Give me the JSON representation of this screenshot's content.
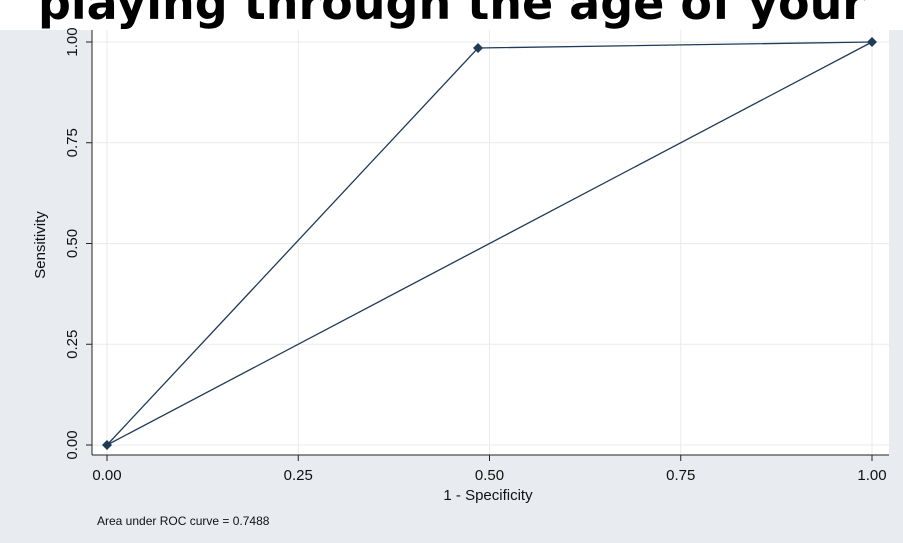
{
  "page": {
    "title_fragment": "playing through the age of your"
  },
  "chart_data": {
    "type": "line",
    "xlabel": "1 - Specificity",
    "ylabel": "Sensitivity",
    "xlim": [
      0,
      1
    ],
    "ylim": [
      0,
      1
    ],
    "x_ticks": [
      "0.00",
      "0.25",
      "0.50",
      "0.75",
      "1.00"
    ],
    "y_ticks": [
      "0.00",
      "0.25",
      "0.50",
      "0.75",
      "1.00"
    ],
    "grid": true,
    "legend": "none",
    "note": "Area under ROC curve = 0.7488",
    "series": [
      {
        "markers": true,
        "color": "#1f3b57",
        "x": [
          0.0,
          0.485,
          1.0
        ],
        "y": [
          0.0,
          0.985,
          1.0
        ]
      },
      {
        "markers": false,
        "color": "#1f3b57",
        "x": [
          0.0,
          1.0
        ],
        "y": [
          0.0,
          1.0
        ]
      }
    ],
    "colors": {
      "outer_background": "#e8ecf0",
      "plot_background": "#ffffff",
      "grid": "#eaeaea"
    }
  }
}
